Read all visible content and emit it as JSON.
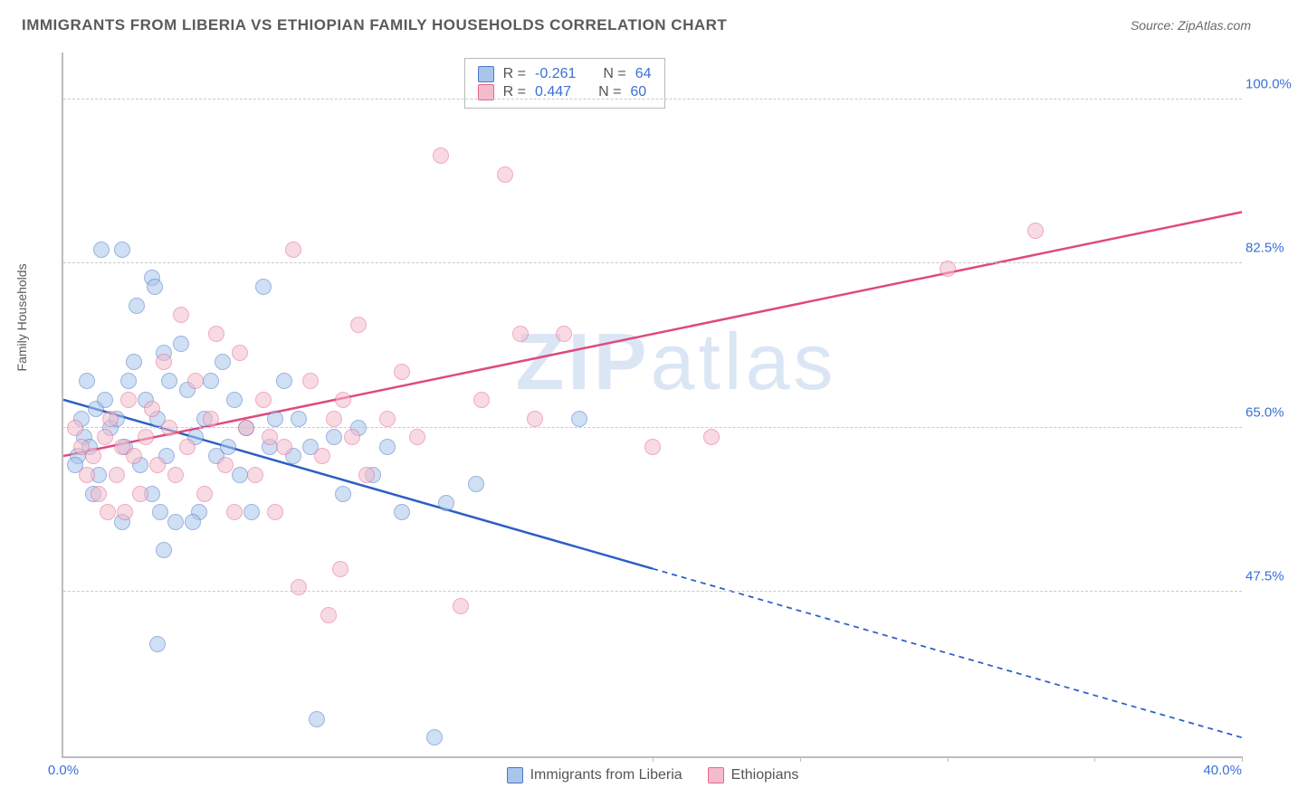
{
  "title": "IMMIGRANTS FROM LIBERIA VS ETHIOPIAN FAMILY HOUSEHOLDS CORRELATION CHART",
  "source": "Source: ZipAtlas.com",
  "watermark": "ZIPatlas",
  "ylabel": "Family Households",
  "chart": {
    "type": "scatter",
    "background_color": "#ffffff",
    "grid_color": "#c9c9c9",
    "axis_color": "#bdbdbd",
    "tick_label_color": "#3b6fd6",
    "label_color": "#5a5a5a",
    "title_color": "#5a5a5a",
    "title_fontsize": 17,
    "label_fontsize": 14,
    "tick_fontsize": 15,
    "xlim": [
      0,
      40
    ],
    "ylim": [
      30,
      105
    ],
    "xticks": [
      {
        "v": 0,
        "label": "0.0%"
      },
      {
        "v": 40,
        "label": "40.0%"
      }
    ],
    "xtick_marks": [
      20,
      25,
      30,
      35,
      40
    ],
    "yticks": [
      {
        "v": 47.5,
        "label": "47.5%"
      },
      {
        "v": 65.0,
        "label": "65.0%"
      },
      {
        "v": 82.5,
        "label": "82.5%"
      },
      {
        "v": 100.0,
        "label": "100.0%"
      }
    ],
    "marker_size": 18,
    "marker_opacity": 0.55,
    "line_width": 2.5,
    "series": [
      {
        "name": "Immigrants from Liberia",
        "color_fill": "#a9c5ec",
        "color_stroke": "#4a78c6",
        "line_color": "#2c5fc4",
        "R": "-0.261",
        "N": "64",
        "trend": {
          "x1": 0,
          "y1": 68,
          "x2": 40,
          "y2": 32,
          "solid_until_x": 20
        },
        "points": [
          {
            "x": 0.7,
            "y": 64
          },
          {
            "x": 0.5,
            "y": 62
          },
          {
            "x": 0.4,
            "y": 61
          },
          {
            "x": 0.6,
            "y": 66
          },
          {
            "x": 0.9,
            "y": 63
          },
          {
            "x": 1.1,
            "y": 67
          },
          {
            "x": 0.8,
            "y": 70
          },
          {
            "x": 1.3,
            "y": 84
          },
          {
            "x": 1.4,
            "y": 68
          },
          {
            "x": 1.2,
            "y": 60
          },
          {
            "x": 1.6,
            "y": 65
          },
          {
            "x": 1.0,
            "y": 58
          },
          {
            "x": 1.8,
            "y": 66
          },
          {
            "x": 2.0,
            "y": 84
          },
          {
            "x": 2.1,
            "y": 63
          },
          {
            "x": 2.2,
            "y": 70
          },
          {
            "x": 2.4,
            "y": 72
          },
          {
            "x": 2.5,
            "y": 78
          },
          {
            "x": 2.6,
            "y": 61
          },
          {
            "x": 2.0,
            "y": 55
          },
          {
            "x": 2.8,
            "y": 68
          },
          {
            "x": 3.0,
            "y": 81
          },
          {
            "x": 3.1,
            "y": 80
          },
          {
            "x": 3.2,
            "y": 66
          },
          {
            "x": 3.4,
            "y": 73
          },
          {
            "x": 3.5,
            "y": 62
          },
          {
            "x": 3.6,
            "y": 70
          },
          {
            "x": 3.8,
            "y": 55
          },
          {
            "x": 3.0,
            "y": 58
          },
          {
            "x": 3.3,
            "y": 56
          },
          {
            "x": 3.2,
            "y": 42
          },
          {
            "x": 3.4,
            "y": 52
          },
          {
            "x": 4.0,
            "y": 74
          },
          {
            "x": 4.2,
            "y": 69
          },
          {
            "x": 4.5,
            "y": 64
          },
          {
            "x": 4.6,
            "y": 56
          },
          {
            "x": 4.8,
            "y": 66
          },
          {
            "x": 4.4,
            "y": 55
          },
          {
            "x": 5.0,
            "y": 70
          },
          {
            "x": 5.2,
            "y": 62
          },
          {
            "x": 5.4,
            "y": 72
          },
          {
            "x": 5.6,
            "y": 63
          },
          {
            "x": 5.8,
            "y": 68
          },
          {
            "x": 6.0,
            "y": 60
          },
          {
            "x": 6.2,
            "y": 65
          },
          {
            "x": 6.4,
            "y": 56
          },
          {
            "x": 6.8,
            "y": 80
          },
          {
            "x": 7.0,
            "y": 63
          },
          {
            "x": 7.2,
            "y": 66
          },
          {
            "x": 7.5,
            "y": 70
          },
          {
            "x": 7.8,
            "y": 62
          },
          {
            "x": 8.0,
            "y": 66
          },
          {
            "x": 8.4,
            "y": 63
          },
          {
            "x": 8.6,
            "y": 34
          },
          {
            "x": 9.2,
            "y": 64
          },
          {
            "x": 9.5,
            "y": 58
          },
          {
            "x": 10.0,
            "y": 65
          },
          {
            "x": 10.5,
            "y": 60
          },
          {
            "x": 11.0,
            "y": 63
          },
          {
            "x": 11.5,
            "y": 56
          },
          {
            "x": 12.6,
            "y": 32
          },
          {
            "x": 13.0,
            "y": 57
          },
          {
            "x": 14.0,
            "y": 59
          },
          {
            "x": 17.5,
            "y": 66
          }
        ]
      },
      {
        "name": "Ethiopians",
        "color_fill": "#f4bccb",
        "color_stroke": "#e36890",
        "line_color": "#e04a7a",
        "R": "0.447",
        "N": "60",
        "trend": {
          "x1": 0,
          "y1": 62,
          "x2": 40,
          "y2": 88,
          "solid_until_x": 40
        },
        "points": [
          {
            "x": 0.6,
            "y": 63
          },
          {
            "x": 0.8,
            "y": 60
          },
          {
            "x": 0.4,
            "y": 65
          },
          {
            "x": 1.0,
            "y": 62
          },
          {
            "x": 1.2,
            "y": 58
          },
          {
            "x": 1.4,
            "y": 64
          },
          {
            "x": 1.6,
            "y": 66
          },
          {
            "x": 1.8,
            "y": 60
          },
          {
            "x": 1.5,
            "y": 56
          },
          {
            "x": 2.0,
            "y": 63
          },
          {
            "x": 2.2,
            "y": 68
          },
          {
            "x": 2.1,
            "y": 56
          },
          {
            "x": 2.4,
            "y": 62
          },
          {
            "x": 2.6,
            "y": 58
          },
          {
            "x": 2.8,
            "y": 64
          },
          {
            "x": 3.0,
            "y": 67
          },
          {
            "x": 3.2,
            "y": 61
          },
          {
            "x": 3.4,
            "y": 72
          },
          {
            "x": 3.6,
            "y": 65
          },
          {
            "x": 3.8,
            "y": 60
          },
          {
            "x": 4.0,
            "y": 77
          },
          {
            "x": 4.2,
            "y": 63
          },
          {
            "x": 4.5,
            "y": 70
          },
          {
            "x": 4.8,
            "y": 58
          },
          {
            "x": 5.0,
            "y": 66
          },
          {
            "x": 5.2,
            "y": 75
          },
          {
            "x": 5.5,
            "y": 61
          },
          {
            "x": 5.8,
            "y": 56
          },
          {
            "x": 6.0,
            "y": 73
          },
          {
            "x": 6.2,
            "y": 65
          },
          {
            "x": 6.5,
            "y": 60
          },
          {
            "x": 6.8,
            "y": 68
          },
          {
            "x": 7.0,
            "y": 64
          },
          {
            "x": 7.2,
            "y": 56
          },
          {
            "x": 7.5,
            "y": 63
          },
          {
            "x": 7.8,
            "y": 84
          },
          {
            "x": 8.0,
            "y": 48
          },
          {
            "x": 8.4,
            "y": 70
          },
          {
            "x": 8.8,
            "y": 62
          },
          {
            "x": 9.0,
            "y": 45
          },
          {
            "x": 9.2,
            "y": 66
          },
          {
            "x": 9.4,
            "y": 50
          },
          {
            "x": 9.5,
            "y": 68
          },
          {
            "x": 9.8,
            "y": 64
          },
          {
            "x": 10.0,
            "y": 76
          },
          {
            "x": 10.3,
            "y": 60
          },
          {
            "x": 11.0,
            "y": 66
          },
          {
            "x": 11.5,
            "y": 71
          },
          {
            "x": 12.0,
            "y": 64
          },
          {
            "x": 12.8,
            "y": 94
          },
          {
            "x": 13.5,
            "y": 46
          },
          {
            "x": 14.2,
            "y": 68
          },
          {
            "x": 15.0,
            "y": 92
          },
          {
            "x": 15.5,
            "y": 75
          },
          {
            "x": 16.0,
            "y": 66
          },
          {
            "x": 17.0,
            "y": 75
          },
          {
            "x": 20.0,
            "y": 63
          },
          {
            "x": 22.0,
            "y": 64
          },
          {
            "x": 30.0,
            "y": 82
          },
          {
            "x": 33.0,
            "y": 86
          }
        ]
      }
    ]
  },
  "legend_top": {
    "R_label": "R =",
    "N_label": "N ="
  },
  "legend_bottom_items": [
    "Immigrants from Liberia",
    "Ethiopians"
  ]
}
